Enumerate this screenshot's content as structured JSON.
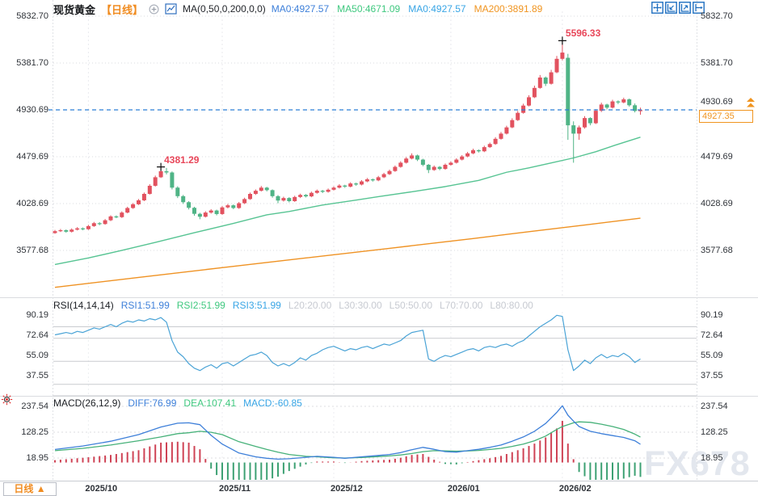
{
  "header": {
    "title": "现货黄金",
    "period_tag": "【日线】",
    "ma_settings": "MA(0,50,0,200,0,0)",
    "ma_values": [
      {
        "text": "MA0:4927.57",
        "color": "#3d7fd9"
      },
      {
        "text": "MA50:4671.09",
        "color": "#3fc87f"
      },
      {
        "text": "MA0:4927.57",
        "color": "#38a5e5"
      },
      {
        "text": "MA200:3891.89",
        "color": "#f0941f"
      }
    ]
  },
  "toolbar": {
    "icons": [
      "pan",
      "zoom-out",
      "zoom-in",
      "go-to-latest"
    ]
  },
  "price_marker": {
    "line_value": "4930.69",
    "current_value": "4927.35"
  },
  "bottom_bar": {
    "period_label": "日线",
    "period_arrow": "▲"
  },
  "watermark": "FX678",
  "chart_data": {
    "type": "candlestick",
    "symbol": "现货黄金",
    "interval": "日线",
    "price_axis_ticks": [
      "5832.70",
      "5381.70",
      "4930.69",
      "4479.69",
      "4028.69",
      "3577.68"
    ],
    "months": [
      {
        "label": "2025/10",
        "day": 6
      },
      {
        "label": "2025/11",
        "day": 30
      },
      {
        "label": "2025/12",
        "day": 50
      },
      {
        "label": "2026/01",
        "day": 71
      },
      {
        "label": "2026/02",
        "day": 91
      }
    ],
    "last_close": 4930.69,
    "current_price": 4927.35,
    "annotations": [
      {
        "text": "5596.33",
        "day": 91,
        "price": 5596.33
      },
      {
        "text": "4381.29",
        "day": 19,
        "price": 4381.29
      }
    ],
    "colors": {
      "up": "#e2525f",
      "down": "#4fb486",
      "ma50": "#57c493",
      "ma200": "#ef9223",
      "last_close_line": "#2b7fd6",
      "rsi_line": "#4aa3d6",
      "diff_line": "#3d7fd9",
      "dea_line": "#46b179",
      "hist_up": "#cf4355",
      "hist_down": "#3da173",
      "accent_orange": "#f0941f",
      "annotation_red": "#e8475a"
    },
    "candles": [
      [
        3745,
        3775,
        3738,
        3763
      ],
      [
        3763,
        3784,
        3755,
        3772
      ],
      [
        3772,
        3780,
        3748,
        3758
      ],
      [
        3758,
        3790,
        3750,
        3778
      ],
      [
        3778,
        3802,
        3770,
        3790
      ],
      [
        3790,
        3798,
        3772,
        3782
      ],
      [
        3782,
        3824,
        3775,
        3812
      ],
      [
        3812,
        3852,
        3804,
        3840
      ],
      [
        3840,
        3850,
        3820,
        3832
      ],
      [
        3832,
        3880,
        3825,
        3868
      ],
      [
        3868,
        3916,
        3860,
        3905
      ],
      [
        3905,
        3915,
        3888,
        3898
      ],
      [
        3898,
        3954,
        3890,
        3942
      ],
      [
        3942,
        3998,
        3935,
        3986
      ],
      [
        3986,
        4034,
        3978,
        4022
      ],
      [
        4022,
        4072,
        4015,
        4060
      ],
      [
        4060,
        4135,
        4052,
        4122
      ],
      [
        4122,
        4215,
        4115,
        4200
      ],
      [
        4200,
        4298,
        4192,
        4282
      ],
      [
        4282,
        4381.29,
        4275,
        4340
      ],
      [
        4340,
        4372,
        4310,
        4328
      ],
      [
        4328,
        4338,
        4165,
        4182
      ],
      [
        4182,
        4195,
        4082,
        4100
      ],
      [
        4100,
        4112,
        4025,
        4042
      ],
      [
        4042,
        4052,
        3972,
        3988
      ],
      [
        3988,
        3998,
        3912,
        3930
      ],
      [
        3930,
        3940,
        3878,
        3902
      ],
      [
        3902,
        3955,
        3895,
        3942
      ],
      [
        3942,
        3975,
        3932,
        3962
      ],
      [
        3962,
        3970,
        3915,
        3928
      ],
      [
        3928,
        4004,
        3920,
        3992
      ],
      [
        3992,
        4025,
        3982,
        4012
      ],
      [
        4012,
        4020,
        3975,
        3986
      ],
      [
        3986,
        4044,
        3978,
        4032
      ],
      [
        4032,
        4085,
        4024,
        4072
      ],
      [
        4072,
        4135,
        4065,
        4122
      ],
      [
        4122,
        4165,
        4112,
        4152
      ],
      [
        4152,
        4198,
        4145,
        4182
      ],
      [
        4182,
        4190,
        4146,
        4158
      ],
      [
        4158,
        4165,
        4085,
        4100
      ],
      [
        4100,
        4110,
        4032,
        4058
      ],
      [
        4058,
        4095,
        4048,
        4082
      ],
      [
        4082,
        4090,
        4040,
        4052
      ],
      [
        4052,
        4104,
        4045,
        4092
      ],
      [
        4092,
        4124,
        4082,
        4112
      ],
      [
        4112,
        4120,
        4088,
        4098
      ],
      [
        4098,
        4144,
        4090,
        4132
      ],
      [
        4132,
        4164,
        4124,
        4152
      ],
      [
        4152,
        4160,
        4130,
        4142
      ],
      [
        4142,
        4174,
        4134,
        4162
      ],
      [
        4162,
        4194,
        4154,
        4182
      ],
      [
        4182,
        4215,
        4174,
        4202
      ],
      [
        4202,
        4210,
        4180,
        4192
      ],
      [
        4192,
        4234,
        4184,
        4222
      ],
      [
        4222,
        4230,
        4200,
        4212
      ],
      [
        4212,
        4254,
        4204,
        4242
      ],
      [
        4242,
        4275,
        4234,
        4262
      ],
      [
        4262,
        4270,
        4240,
        4252
      ],
      [
        4252,
        4295,
        4244,
        4282
      ],
      [
        4282,
        4325,
        4274,
        4312
      ],
      [
        4312,
        4355,
        4304,
        4342
      ],
      [
        4342,
        4395,
        4334,
        4382
      ],
      [
        4382,
        4436,
        4374,
        4422
      ],
      [
        4422,
        4476,
        4414,
        4462
      ],
      [
        4462,
        4512,
        4454,
        4492
      ],
      [
        4492,
        4500,
        4438,
        4452
      ],
      [
        4452,
        4460,
        4388,
        4402
      ],
      [
        4402,
        4410,
        4322,
        4352
      ],
      [
        4352,
        4395,
        4344,
        4382
      ],
      [
        4382,
        4390,
        4350,
        4362
      ],
      [
        4362,
        4415,
        4354,
        4402
      ],
      [
        4402,
        4435,
        4394,
        4422
      ],
      [
        4422,
        4465,
        4414,
        4452
      ],
      [
        4452,
        4495,
        4444,
        4482
      ],
      [
        4482,
        4526,
        4474,
        4512
      ],
      [
        4512,
        4556,
        4504,
        4542
      ],
      [
        4542,
        4550,
        4520,
        4532
      ],
      [
        4532,
        4586,
        4524,
        4572
      ],
      [
        4572,
        4616,
        4564,
        4602
      ],
      [
        4602,
        4668,
        4594,
        4652
      ],
      [
        4652,
        4718,
        4644,
        4702
      ],
      [
        4702,
        4778,
        4694,
        4762
      ],
      [
        4762,
        4850,
        4754,
        4832
      ],
      [
        4832,
        4920,
        4824,
        4902
      ],
      [
        4902,
        4990,
        4894,
        4972
      ],
      [
        4972,
        5072,
        4964,
        5052
      ],
      [
        5052,
        5164,
        5044,
        5142
      ],
      [
        5142,
        5266,
        5134,
        5242
      ],
      [
        5242,
        5252,
        5160,
        5182
      ],
      [
        5182,
        5316,
        5174,
        5292
      ],
      [
        5292,
        5450,
        5284,
        5422
      ],
      [
        5422,
        5596.33,
        5408,
        5482
      ],
      [
        5432,
        5470,
        4642,
        4782
      ],
      [
        4782,
        4820,
        4422,
        4702
      ],
      [
        4702,
        4780,
        4642,
        4762
      ],
      [
        4762,
        4870,
        4750,
        4852
      ],
      [
        4852,
        4860,
        4782,
        4802
      ],
      [
        4802,
        4938,
        4794,
        4922
      ],
      [
        4922,
        5000,
        4910,
        4982
      ],
      [
        4982,
        4990,
        4936,
        4952
      ],
      [
        4952,
        5028,
        4944,
        5012
      ],
      [
        5012,
        5022,
        4986,
        5002
      ],
      [
        5002,
        5048,
        4994,
        5032
      ],
      [
        5032,
        5040,
        4962,
        4975
      ],
      [
        4975,
        4992,
        4906,
        4920
      ],
      [
        4920,
        4952,
        4884,
        4927.35
      ]
    ],
    "ma50_points": [
      [
        0,
        3442
      ],
      [
        6,
        3505
      ],
      [
        12,
        3578
      ],
      [
        18,
        3655
      ],
      [
        25,
        3748
      ],
      [
        32,
        3838
      ],
      [
        38,
        3920
      ],
      [
        42,
        3952
      ],
      [
        48,
        4015
      ],
      [
        54,
        4062
      ],
      [
        58,
        4095
      ],
      [
        64,
        4142
      ],
      [
        70,
        4192
      ],
      [
        76,
        4252
      ],
      [
        81,
        4330
      ],
      [
        85,
        4372
      ],
      [
        89,
        4420
      ],
      [
        93,
        4468
      ],
      [
        97,
        4528
      ],
      [
        101,
        4600
      ],
      [
        105,
        4668
      ]
    ],
    "ma200_points": [
      [
        0,
        3222
      ],
      [
        15,
        3318
      ],
      [
        30,
        3412
      ],
      [
        45,
        3505
      ],
      [
        60,
        3598
      ],
      [
        75,
        3692
      ],
      [
        85,
        3758
      ],
      [
        95,
        3822
      ],
      [
        105,
        3888
      ]
    ],
    "rsi": {
      "params": "RSI(14,14,14)",
      "legend": [
        {
          "text": "RSI1:51.99",
          "color": "#3d7fd9"
        },
        {
          "text": "RSI2:51.99",
          "color": "#3fc87f"
        },
        {
          "text": "RSI3:51.99",
          "color": "#38a5e5"
        }
      ],
      "levels_legend": [
        "L20:20.00",
        "L30:30.00",
        "L50:50.00",
        "L70:70.00",
        "L80:80.00"
      ],
      "axis_ticks": [
        "90.19",
        "72.64",
        "55.09",
        "37.55"
      ],
      "level_lines": [
        20,
        30,
        50,
        70,
        80
      ],
      "values": [
        73,
        74,
        75,
        74,
        76,
        75,
        77,
        79,
        78,
        80,
        82,
        80,
        83,
        85,
        84,
        86,
        85,
        87,
        86,
        88,
        84,
        68,
        58,
        54,
        48,
        44,
        42,
        45,
        47,
        44,
        48,
        49,
        46,
        49,
        52,
        55,
        56,
        58,
        55,
        49,
        46,
        48,
        46,
        49,
        53,
        51,
        55,
        57,
        60,
        62,
        63,
        61,
        59,
        61,
        60,
        62,
        63,
        61,
        63,
        65,
        64,
        66,
        68,
        72,
        75,
        76,
        77,
        52,
        50,
        53,
        55,
        54,
        56,
        58,
        60,
        61,
        59,
        62,
        63,
        62,
        64,
        65,
        63,
        66,
        68,
        72,
        76,
        80,
        83,
        86,
        90,
        89,
        60,
        42,
        46,
        51,
        48,
        53,
        56,
        53,
        55,
        54,
        57,
        54,
        49,
        52
      ]
    },
    "macd": {
      "params": "MACD(26,12,9)",
      "legend": [
        {
          "text": "DIFF:76.99",
          "color": "#3d7fd9"
        },
        {
          "text": "DEA:107.41",
          "color": "#3fc87f"
        },
        {
          "text": "MACD:-60.85",
          "color": "#38a5e5"
        }
      ],
      "axis_ticks": [
        "237.54",
        "128.25",
        "18.95"
      ],
      "diff_points": [
        [
          0,
          55
        ],
        [
          5,
          70
        ],
        [
          10,
          90
        ],
        [
          15,
          118
        ],
        [
          19,
          150
        ],
        [
          22,
          166
        ],
        [
          24,
          168
        ],
        [
          26,
          160
        ],
        [
          28,
          115
        ],
        [
          30,
          78
        ],
        [
          33,
          40
        ],
        [
          36,
          24
        ],
        [
          38,
          18
        ],
        [
          40,
          14
        ],
        [
          42,
          16
        ],
        [
          45,
          22
        ],
        [
          47,
          26
        ],
        [
          50,
          22
        ],
        [
          52,
          18
        ],
        [
          55,
          24
        ],
        [
          58,
          30
        ],
        [
          60,
          34
        ],
        [
          62,
          42
        ],
        [
          64,
          54
        ],
        [
          66,
          64
        ],
        [
          68,
          56
        ],
        [
          70,
          46
        ],
        [
          72,
          44
        ],
        [
          74,
          50
        ],
        [
          76,
          56
        ],
        [
          78,
          64
        ],
        [
          80,
          74
        ],
        [
          82,
          90
        ],
        [
          84,
          108
        ],
        [
          86,
          132
        ],
        [
          88,
          165
        ],
        [
          90,
          212
        ],
        [
          91,
          240
        ],
        [
          92,
          200
        ],
        [
          93,
          175
        ],
        [
          94,
          152
        ],
        [
          96,
          132
        ],
        [
          98,
          122
        ],
        [
          100,
          114
        ],
        [
          102,
          106
        ],
        [
          104,
          92
        ],
        [
          105,
          77
        ]
      ],
      "dea_points": [
        [
          0,
          50
        ],
        [
          5,
          60
        ],
        [
          10,
          74
        ],
        [
          15,
          92
        ],
        [
          19,
          108
        ],
        [
          22,
          122
        ],
        [
          24,
          126
        ],
        [
          26,
          132
        ],
        [
          28,
          128
        ],
        [
          30,
          118
        ],
        [
          33,
          88
        ],
        [
          36,
          68
        ],
        [
          38,
          55
        ],
        [
          40,
          44
        ],
        [
          42,
          34
        ],
        [
          45,
          26
        ],
        [
          47,
          24
        ],
        [
          50,
          20
        ],
        [
          52,
          19
        ],
        [
          55,
          21
        ],
        [
          58,
          25
        ],
        [
          60,
          28
        ],
        [
          62,
          32
        ],
        [
          64,
          38
        ],
        [
          66,
          46
        ],
        [
          68,
          50
        ],
        [
          70,
          49
        ],
        [
          72,
          48
        ],
        [
          74,
          49
        ],
        [
          76,
          51
        ],
        [
          78,
          55
        ],
        [
          80,
          60
        ],
        [
          82,
          68
        ],
        [
          84,
          78
        ],
        [
          86,
          92
        ],
        [
          88,
          112
        ],
        [
          90,
          140
        ],
        [
          91,
          152
        ],
        [
          92,
          160
        ],
        [
          93,
          168
        ],
        [
          94,
          172
        ],
        [
          96,
          170
        ],
        [
          98,
          162
        ],
        [
          100,
          152
        ],
        [
          102,
          140
        ],
        [
          104,
          120
        ],
        [
          105,
          107.41
        ]
      ]
    }
  }
}
